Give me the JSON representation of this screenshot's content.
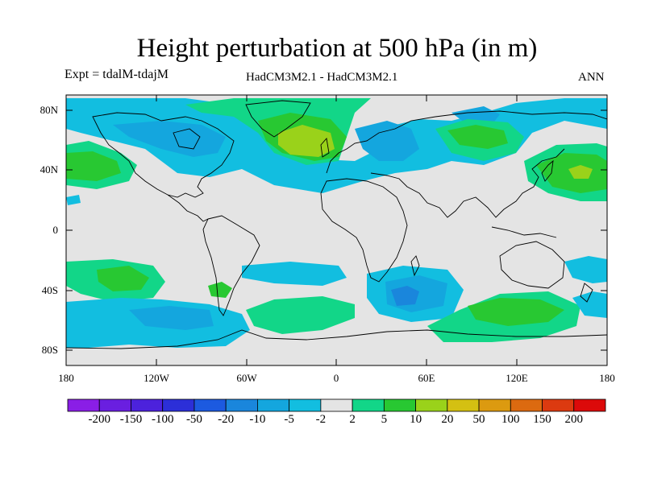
{
  "title": "Height perturbation at 500 hPa (in m)",
  "experiment": "Expt = tdalM-tdajM",
  "models": "HadCM3M2.1 - HadCM3M2.1",
  "season": "ANN",
  "lat_ticks": [
    "80N",
    "40N",
    "0",
    "40S",
    "80S"
  ],
  "lon_ticks": [
    "180",
    "120W",
    "60W",
    "0",
    "60E",
    "120E",
    "180"
  ],
  "colorbar": {
    "labels": [
      "-200",
      "-150",
      "-100",
      "-50",
      "-20",
      "-10",
      "-5",
      "-2",
      "2",
      "5",
      "10",
      "20",
      "50",
      "100",
      "150",
      "200"
    ],
    "colors": [
      "#8a1ee6",
      "#6a1fe0",
      "#4c22dc",
      "#2c2fd8",
      "#1c5ae0",
      "#1a86dc",
      "#14a6de",
      "#12bee0",
      "#e4e4e4",
      "#12d688",
      "#28c832",
      "#9ad21a",
      "#d4c012",
      "#dc9a10",
      "#dc6a10",
      "#dc3a10",
      "#dc0a0a"
    ]
  },
  "field_colors": {
    "background": "#e4e4e4",
    "neg_weak": "#12bee0",
    "neg_medium": "#14a6de",
    "pos_weak": "#12d688",
    "pos_medium": "#28c832",
    "pos_strong": "#9ad21a"
  }
}
